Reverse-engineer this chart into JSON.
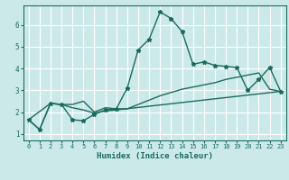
{
  "title": "",
  "xlabel": "Humidex (Indice chaleur)",
  "bg_color": "#cce9ea",
  "grid_color": "#ffffff",
  "line_color": "#1a6b5e",
  "xlim": [
    -0.5,
    23.5
  ],
  "ylim": [
    0.7,
    6.9
  ],
  "xticks": [
    0,
    1,
    2,
    3,
    4,
    5,
    6,
    7,
    8,
    9,
    10,
    11,
    12,
    13,
    14,
    15,
    16,
    17,
    18,
    19,
    20,
    21,
    22,
    23
  ],
  "yticks": [
    1,
    2,
    3,
    4,
    5,
    6
  ],
  "series": {
    "line1_x": [
      0,
      1,
      2,
      3,
      4,
      5,
      6,
      7,
      8,
      9,
      10,
      11,
      12,
      13,
      14,
      15,
      16,
      17,
      18,
      19,
      20,
      21,
      22,
      23
    ],
    "line1_y": [
      1.65,
      1.2,
      2.4,
      2.35,
      1.65,
      1.6,
      1.9,
      2.1,
      2.15,
      3.1,
      4.85,
      5.35,
      6.6,
      6.3,
      5.7,
      4.2,
      4.3,
      4.15,
      4.1,
      4.05,
      3.0,
      3.5,
      4.05,
      2.95
    ],
    "line2_x": [
      0,
      1,
      2,
      3,
      4,
      5,
      6,
      7,
      8,
      9,
      10,
      11,
      12,
      13,
      14,
      15,
      16,
      17,
      18,
      19,
      20,
      21,
      22,
      23
    ],
    "line2_y": [
      1.65,
      1.2,
      2.4,
      2.35,
      2.35,
      2.5,
      2.0,
      2.2,
      2.15,
      2.15,
      2.35,
      2.55,
      2.75,
      2.9,
      3.05,
      3.15,
      3.25,
      3.35,
      3.5,
      3.6,
      3.7,
      3.8,
      3.05,
      2.95
    ],
    "line3_x": [
      0,
      2,
      3,
      4,
      5,
      6,
      7,
      8,
      23
    ],
    "line3_y": [
      1.65,
      2.4,
      2.35,
      2.2,
      2.1,
      1.95,
      2.05,
      2.1,
      2.95
    ]
  }
}
